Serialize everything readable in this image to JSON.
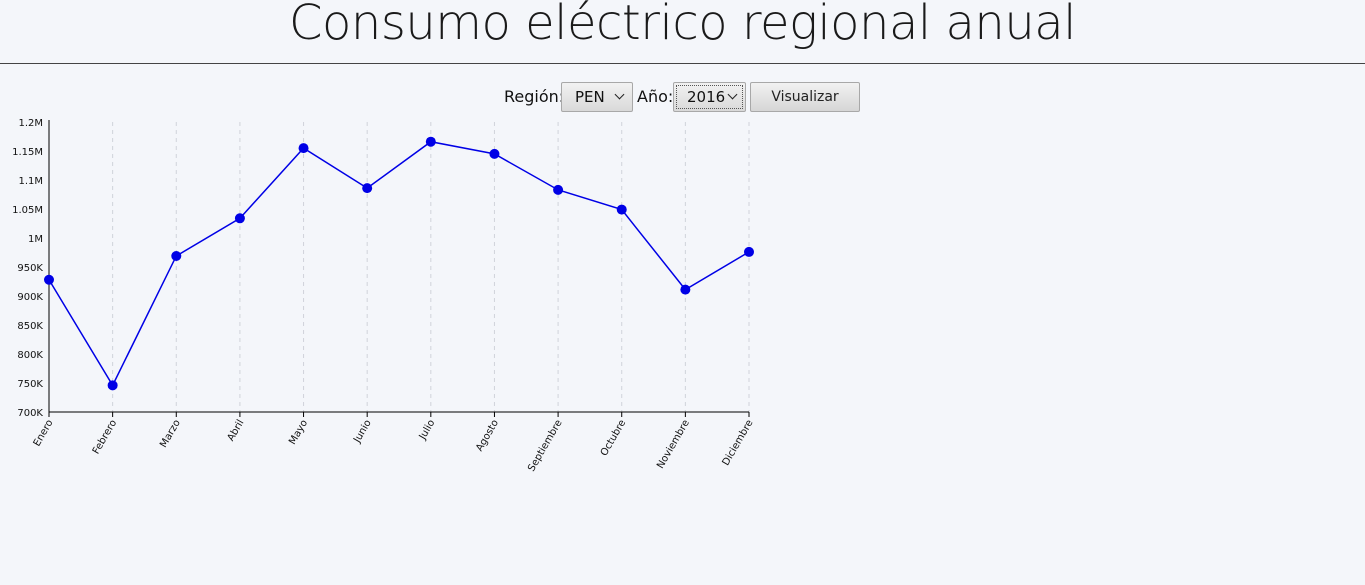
{
  "page": {
    "title": "Consumo eléctrico regional anual"
  },
  "controls": {
    "region_label": "Región:",
    "region_value": "PEN",
    "year_label": "Año:",
    "year_value": "2016",
    "submit_label": "Visualizar"
  },
  "colors": {
    "series": "#0000e6",
    "axis": "#000000",
    "grid": "#d0d3da"
  },
  "chart_data": {
    "type": "line",
    "categories": [
      "Enero",
      "Febrero",
      "Marzo",
      "Abril",
      "Mayo",
      "Junio",
      "Julio",
      "Agosto",
      "Septiembre",
      "Octubre",
      "Noviembre",
      "Diciembre"
    ],
    "series": [
      {
        "values": [
          928000,
          746000,
          969000,
          1034000,
          1155000,
          1086000,
          1166000,
          1145000,
          1083000,
          1049000,
          911000,
          976000
        ]
      }
    ],
    "ylim": [
      700000,
      1200000
    ],
    "yticks": [
      700000,
      750000,
      800000,
      850000,
      900000,
      950000,
      1000000,
      1050000,
      1100000,
      1150000,
      1200000
    ],
    "ytick_labels": [
      "700K",
      "750K",
      "800K",
      "850K",
      "900K",
      "950K",
      "1M",
      "1.05M",
      "1.1M",
      "1.15M",
      "1.2M"
    ],
    "grid": "vertical dashed",
    "legend": "none"
  }
}
